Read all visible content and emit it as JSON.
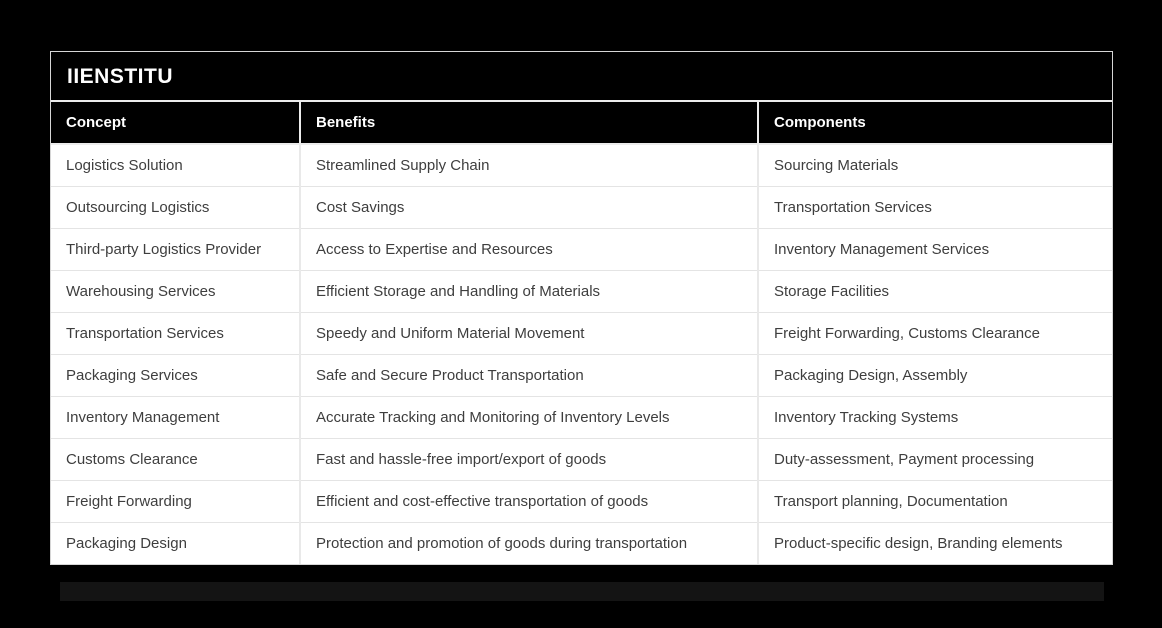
{
  "chart_data": {
    "type": "table",
    "title": "IIENSTITU",
    "columns": [
      "Concept",
      "Benefits",
      "Components"
    ],
    "rows": [
      [
        "Logistics Solution",
        "Streamlined Supply Chain",
        "Sourcing Materials"
      ],
      [
        "Outsourcing Logistics",
        "Cost Savings",
        "Transportation Services"
      ],
      [
        "Third-party Logistics Provider",
        "Access to Expertise and Resources",
        "Inventory Management Services"
      ],
      [
        "Warehousing Services",
        "Efficient Storage and Handling of Materials",
        "Storage Facilities"
      ],
      [
        "Transportation Services",
        "Speedy and Uniform Material Movement",
        "Freight Forwarding, Customs Clearance"
      ],
      [
        "Packaging Services",
        "Safe and Secure Product Transportation",
        "Packaging Design, Assembly"
      ],
      [
        "Inventory Management",
        "Accurate Tracking and Monitoring of Inventory Levels",
        "Inventory Tracking Systems"
      ],
      [
        "Customs Clearance",
        "Fast and hassle-free import/export of goods",
        "Duty-assessment, Payment processing"
      ],
      [
        "Freight Forwarding",
        "Efficient and cost-effective transportation of goods",
        "Transport planning, Documentation"
      ],
      [
        "Packaging Design",
        "Protection and promotion of goods during transportation",
        "Product-specific design, Branding elements"
      ]
    ],
    "layout": {
      "legend": "none",
      "grid": "row-and-column-dividers",
      "header_style": "black-band-white-text",
      "row_style": "white-rows-dark-text"
    }
  },
  "colors": {
    "page_background": "#000000",
    "band_background": "#000000",
    "band_text": "#ffffff",
    "row_background": "#ffffff",
    "row_text": "#3e3e3e",
    "divider": "#e9e9e9",
    "shadow_band": "#141414"
  }
}
